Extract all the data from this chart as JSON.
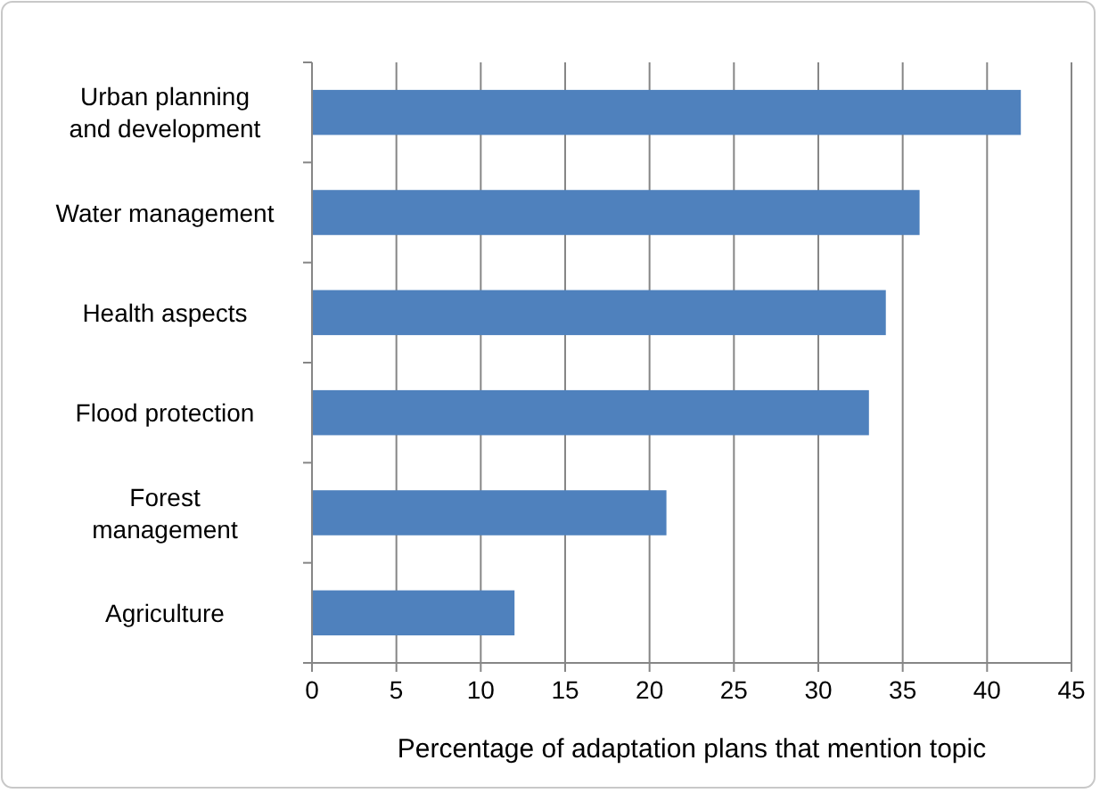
{
  "chart_data": {
    "type": "bar",
    "orientation": "horizontal",
    "xlabel": "Percentage of adaptation plans that mention topic",
    "categories": [
      "Urban planning and development",
      "Water management",
      "Health aspects",
      "Flood protection",
      "Forest management",
      "Agriculture"
    ],
    "values": [
      42,
      36,
      34,
      33,
      21,
      12
    ],
    "color": "#4f81bd",
    "xlim": [
      0,
      45
    ],
    "xticks": [
      0,
      5,
      10,
      15,
      20,
      25,
      30,
      35,
      40,
      45
    ],
    "grid": "x"
  }
}
